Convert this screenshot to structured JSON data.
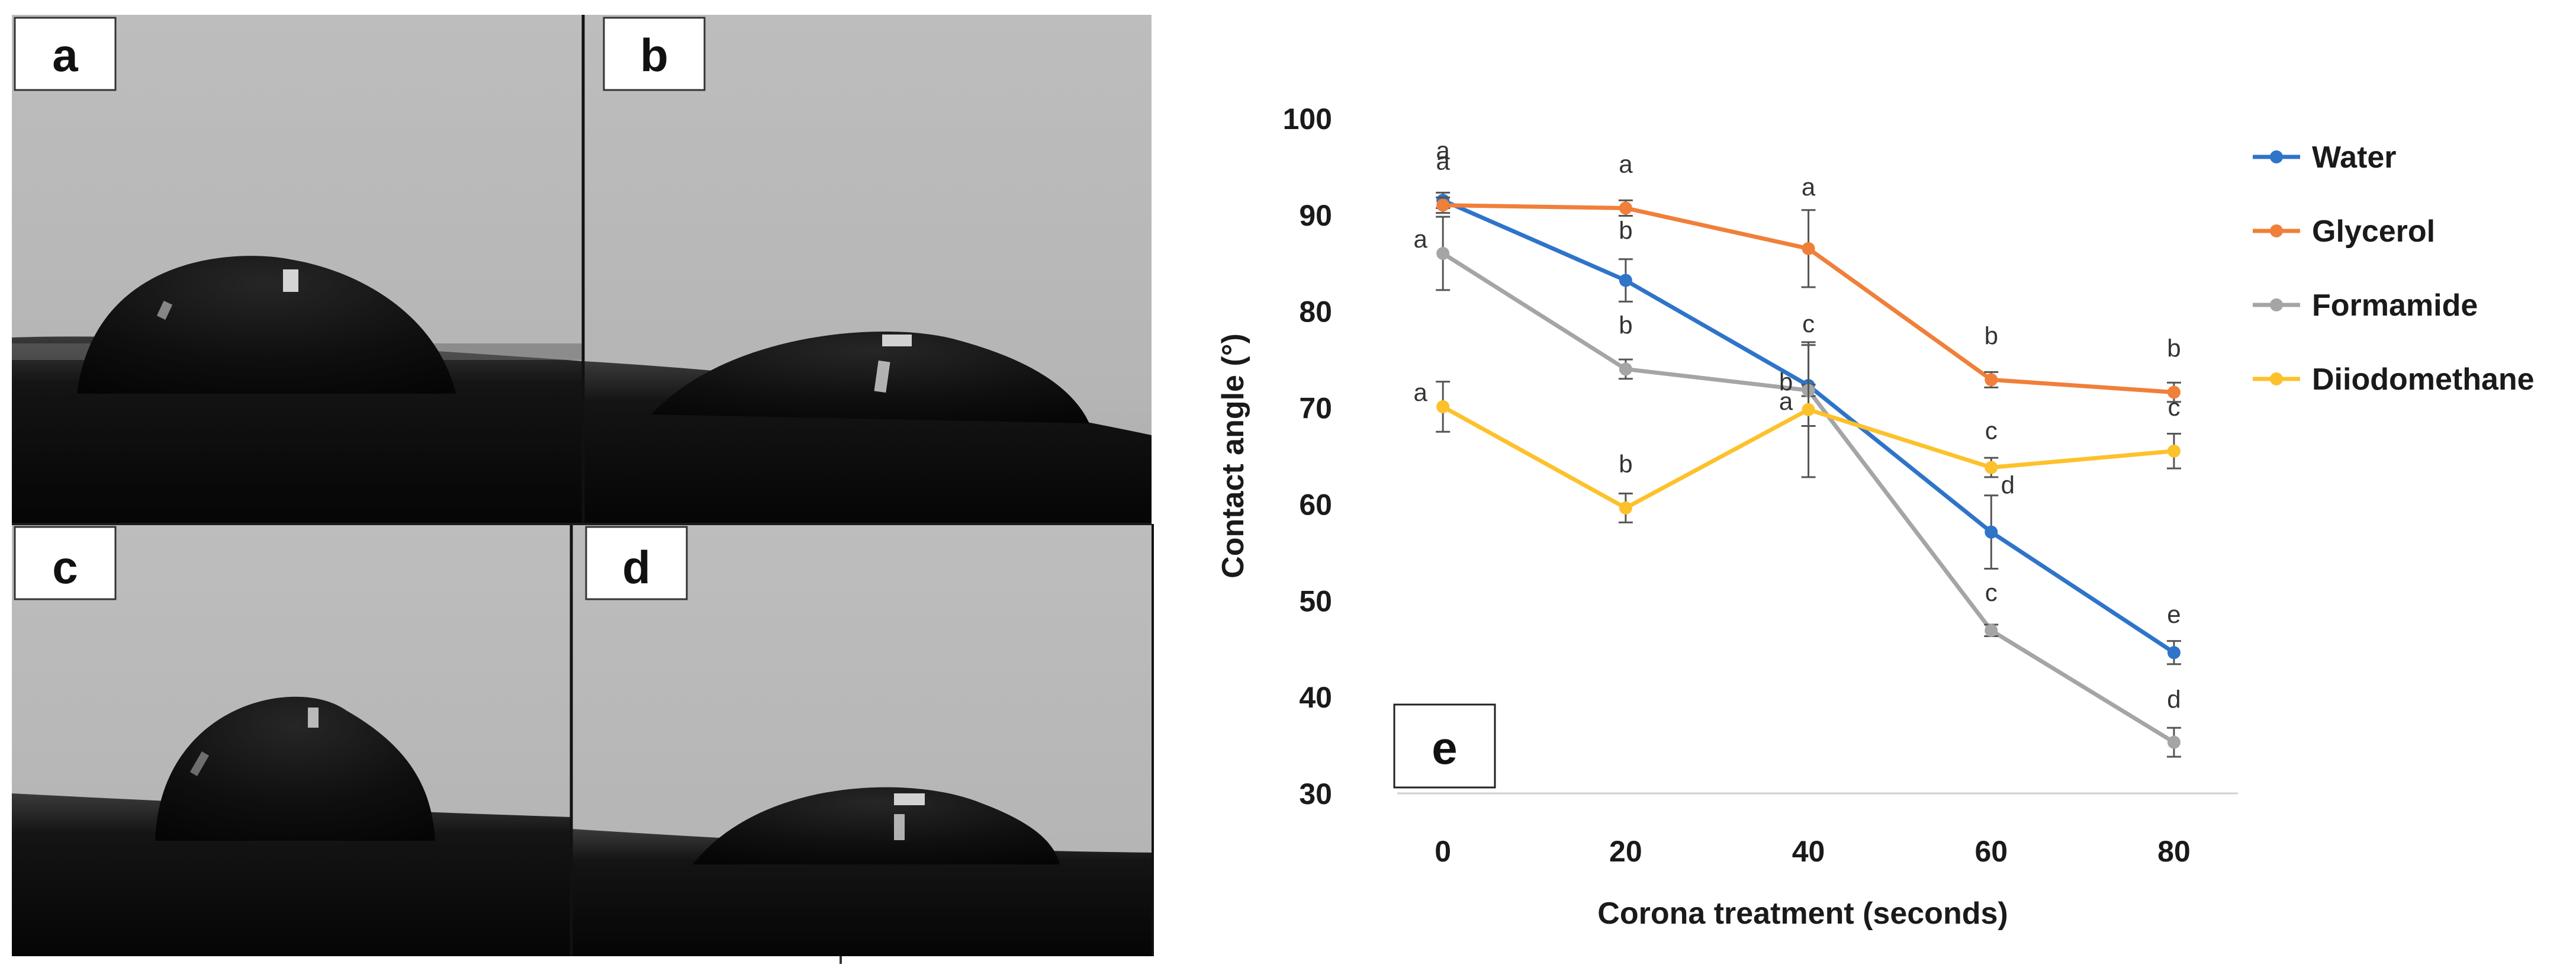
{
  "colors": {
    "water": "#2e74c9",
    "glycerol": "#f07f3a",
    "formamide": "#a5a5a5",
    "diiodomethane": "#fdc12b",
    "photo_background": "#b8b8b8",
    "droplet": "#0d0d0d",
    "axis_text": "#1a1a1a",
    "error_bar": "#555555"
  },
  "photos": {
    "panels": [
      {
        "label": "a"
      },
      {
        "label": "b"
      },
      {
        "label": "c"
      },
      {
        "label": "d"
      }
    ]
  },
  "chart_data": {
    "type": "line",
    "panel_label": "e",
    "title": "",
    "xlabel": "Corona treatment (seconds)",
    "ylabel": "Contact angle (°)",
    "x": [
      0,
      20,
      40,
      60,
      80
    ],
    "x_tick_labels": [
      "0",
      "20",
      "40",
      "60",
      "80"
    ],
    "ylim": [
      30,
      100
    ],
    "y_ticks": [
      30,
      40,
      50,
      60,
      70,
      80,
      90,
      100
    ],
    "y_tick_labels": [
      "30",
      "40",
      "50",
      "60",
      "70",
      "80",
      "90",
      "100"
    ],
    "grid": false,
    "legend_position": "right",
    "series": [
      {
        "name": "Water",
        "color_key": "water",
        "values": [
          91.5,
          83.2,
          72.3,
          57.1,
          44.6
        ],
        "errors": [
          0.8,
          2.2,
          4.2,
          3.8,
          1.2
        ],
        "letters": [
          "a",
          "b",
          "c",
          "d",
          "e"
        ]
      },
      {
        "name": "Glycerol",
        "color_key": "glycerol",
        "values": [
          91.0,
          90.7,
          86.5,
          72.9,
          71.6
        ],
        "errors": [
          0.8,
          0.8,
          4.0,
          0.8,
          1.0
        ],
        "letters": [
          "a",
          "a",
          "a",
          "b",
          "b"
        ]
      },
      {
        "name": "Formamide",
        "color_key": "formamide",
        "values": [
          86.0,
          74.0,
          71.8,
          46.9,
          35.3
        ],
        "errors": [
          3.8,
          1.0,
          0.6,
          0.6,
          1.5
        ],
        "letters": [
          "a",
          "b",
          "b",
          "c",
          "d"
        ]
      },
      {
        "name": "Diiodomethane",
        "color_key": "diiodomethane",
        "values": [
          70.1,
          59.6,
          69.8,
          63.8,
          65.5
        ],
        "errors": [
          2.6,
          1.5,
          7.0,
          1.0,
          1.8
        ],
        "letters": [
          "a",
          "b",
          "a",
          "c",
          "c"
        ]
      }
    ]
  }
}
